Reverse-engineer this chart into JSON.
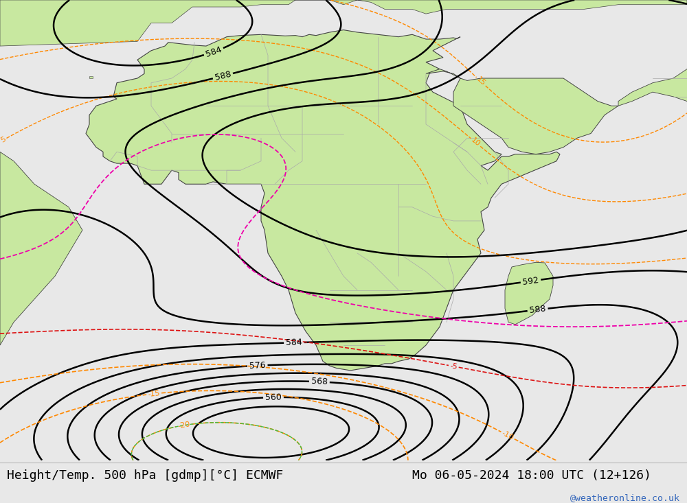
{
  "title_left": "Height/Temp. 500 hPa [gdmp][°C] ECMWF",
  "title_right": "Mo 06-05-2024 18:00 UTC (12+126)",
  "watermark": "@weatheronline.co.uk",
  "watermark_color": "#3366bb",
  "bg_color": "#e8e8e8",
  "land_color": "#c8e8a0",
  "ocean_color": "#d8d8d8",
  "border_color": "#aaaaaa",
  "coast_color": "#444444",
  "contour_black": "#000000",
  "contour_orange": "#ff8800",
  "contour_red": "#dd1111",
  "contour_green": "#44bb44",
  "contour_cyan": "#00bbbb",
  "contour_magenta": "#ee00aa",
  "title_fontsize": 13.0,
  "title_color": "#000000",
  "figsize": [
    10.0,
    7.33
  ],
  "dpi": 100,
  "lon_min": -30,
  "lon_max": 70,
  "lat_min": -55,
  "lat_max": 45
}
